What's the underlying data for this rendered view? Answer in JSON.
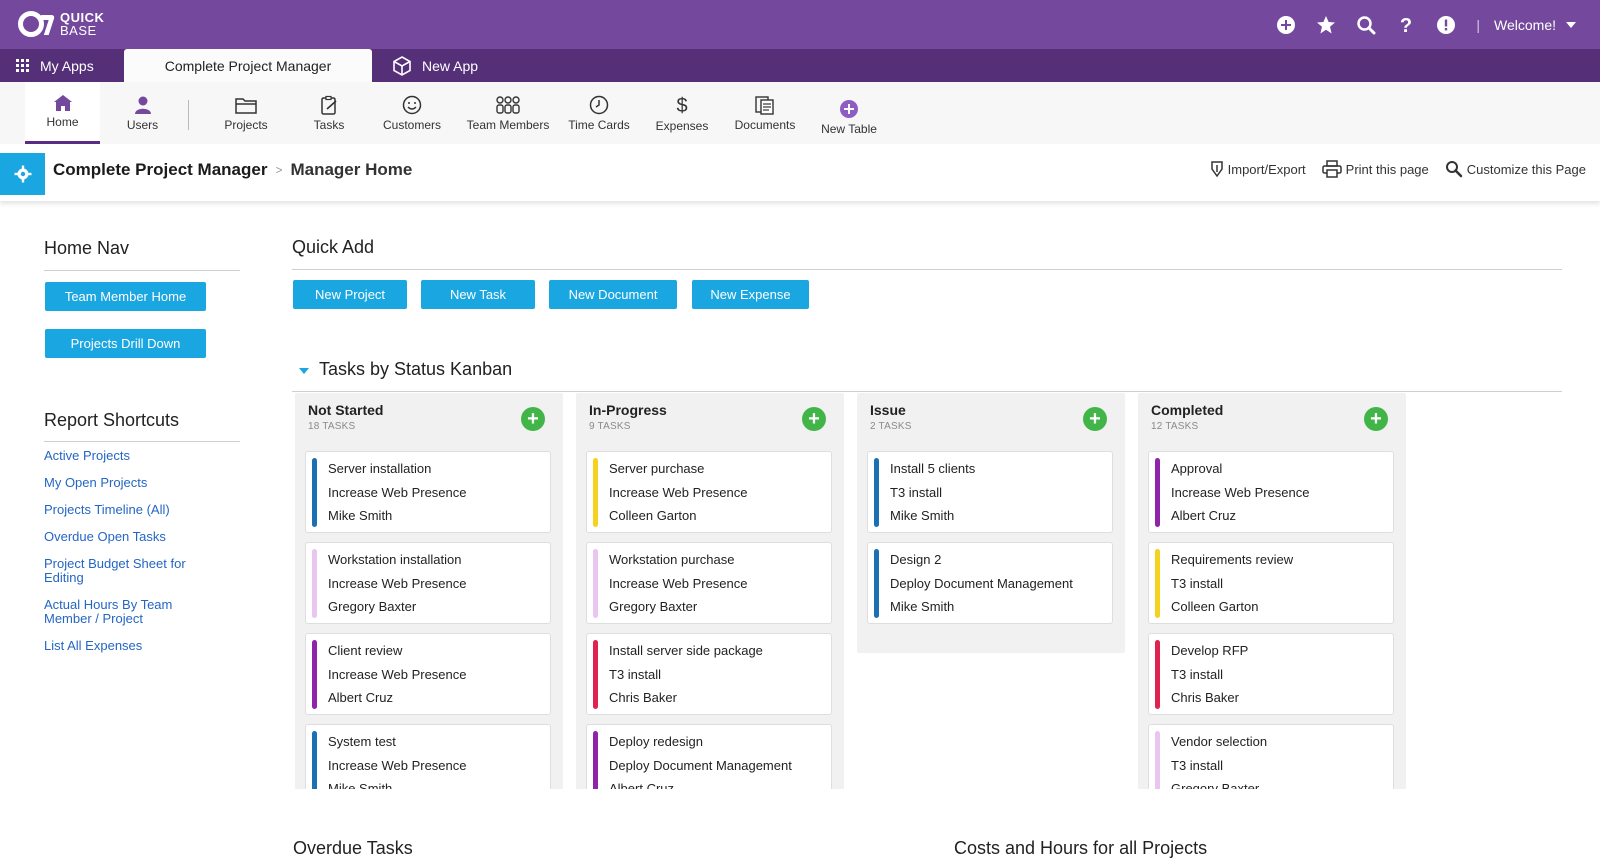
{
  "brand": {
    "line1": "QUICK",
    "line2": "BASE"
  },
  "topbar": {
    "icons": [
      "add-circle-icon",
      "star-icon",
      "search-icon",
      "help-icon",
      "alert-icon"
    ],
    "welcome": "Welcome!"
  },
  "app_tabs": {
    "my_apps": "My Apps",
    "active": "Complete Project Manager",
    "new_app": "New App"
  },
  "table_nav": [
    {
      "label": "Home",
      "icon": "home-icon"
    },
    {
      "label": "Users",
      "icon": "user-icon"
    },
    {
      "label": "Projects",
      "icon": "folder-icon"
    },
    {
      "label": "Tasks",
      "icon": "clipboard-icon"
    },
    {
      "label": "Customers",
      "icon": "smiley-icon"
    },
    {
      "label": "Team Members",
      "icon": "team-icon"
    },
    {
      "label": "Time Cards",
      "icon": "clock-icon"
    },
    {
      "label": "Expenses",
      "icon": "dollar-icon"
    },
    {
      "label": "Documents",
      "icon": "documents-icon"
    },
    {
      "label": "New Table",
      "icon": "add-circle-icon"
    }
  ],
  "page_header": {
    "app": "Complete Project Manager",
    "page": "Manager Home",
    "actions": {
      "import_export": "Import/Export",
      "print": "Print this page",
      "customize": "Customize this Page"
    }
  },
  "home_nav": {
    "title": "Home Nav",
    "buttons": [
      "Team Member Home",
      "Projects Drill Down"
    ]
  },
  "report_shortcuts": {
    "title": "Report Shortcuts",
    "links": [
      "Active Projects",
      "My Open Projects",
      "Projects Timeline (All)",
      "Overdue Open Tasks",
      "Project Budget Sheet for Editing",
      "Actual Hours By Team Member / Project",
      "List All Expenses"
    ]
  },
  "quick_add": {
    "title": "Quick Add",
    "buttons": [
      "New Project",
      "New Task",
      "New Document",
      "New Expense"
    ]
  },
  "kanban": {
    "title": "Tasks by Status Kanban",
    "columns": [
      {
        "name": "Not Started",
        "count": "18 TASKS",
        "cards": [
          {
            "title": "Server installation",
            "project": "Increase Web Presence",
            "person": "Mike Smith",
            "color": "#1c6fb2"
          },
          {
            "title": "Workstation installation",
            "project": "Increase Web Presence",
            "person": "Gregory Baxter",
            "color": "#e9c6ef"
          },
          {
            "title": "Client review",
            "project": "Increase Web Presence",
            "person": "Albert Cruz",
            "color": "#8e24aa"
          },
          {
            "title": "System test",
            "project": "Increase Web Presence",
            "person": "Mike Smith",
            "color": "#1c6fb2"
          }
        ]
      },
      {
        "name": "In-Progress",
        "count": "9 TASKS",
        "cards": [
          {
            "title": "Server purchase",
            "project": "Increase Web Presence",
            "person": "Colleen Garton",
            "color": "#f4d21f"
          },
          {
            "title": "Workstation purchase",
            "project": "Increase Web Presence",
            "person": "Gregory Baxter",
            "color": "#e9c6ef"
          },
          {
            "title": "Install server side package",
            "project": "T3 install",
            "person": "Chris Baker",
            "color": "#e0224f"
          },
          {
            "title": "Deploy redesign",
            "project": "Deploy Document Management",
            "person": "Albert Cruz",
            "color": "#8e24aa"
          }
        ]
      },
      {
        "name": "Issue",
        "count": "2 TASKS",
        "cards": [
          {
            "title": "Install 5 clients",
            "project": "T3 install",
            "person": "Mike Smith",
            "color": "#1c6fb2"
          },
          {
            "title": "Design 2",
            "project": "Deploy Document Management",
            "person": "Mike Smith",
            "color": "#1c6fb2"
          }
        ]
      },
      {
        "name": "Completed",
        "count": "12 TASKS",
        "cards": [
          {
            "title": "Approval",
            "project": "Increase Web Presence",
            "person": "Albert Cruz",
            "color": "#8e24aa"
          },
          {
            "title": "Requirements review",
            "project": "T3 install",
            "person": "Colleen Garton",
            "color": "#f4d21f"
          },
          {
            "title": "Develop RFP",
            "project": "T3 install",
            "person": "Chris Baker",
            "color": "#e0224f"
          },
          {
            "title": "Vendor selection",
            "project": "T3 install",
            "person": "Gregory Baxter",
            "color": "#e9c6ef"
          }
        ]
      }
    ]
  },
  "bottom": {
    "overdue": "Overdue Tasks",
    "costs": "Costs and Hours for all Projects"
  },
  "colors": {
    "purple": "#74489d",
    "purple_dark": "#553078",
    "accent_blue": "#1aa6e0",
    "green": "#42b549",
    "link": "#2466c4"
  }
}
